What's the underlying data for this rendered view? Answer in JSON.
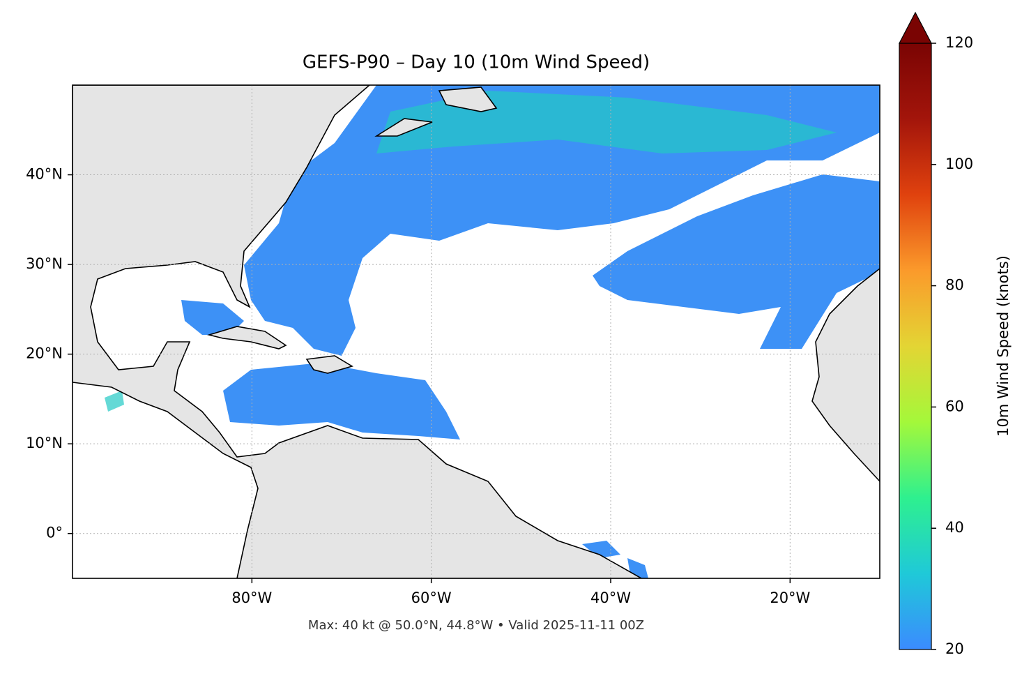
{
  "chart_data": {
    "type": "map",
    "title": "GEFS-P90 – Day 10 (10m Wind Speed)",
    "footer": "Max: 40 kt @ 50.0°N, 44.8°W • Valid 2025-11-11 00Z",
    "xlim": [
      -100,
      -10
    ],
    "ylim": [
      -5,
      50
    ],
    "xticks": [
      {
        "value": -80,
        "label": "80°W"
      },
      {
        "value": -60,
        "label": "60°W"
      },
      {
        "value": -40,
        "label": "40°W"
      },
      {
        "value": -20,
        "label": "20°W"
      }
    ],
    "yticks": [
      {
        "value": 0,
        "label": "0°"
      },
      {
        "value": 10,
        "label": "10°N"
      },
      {
        "value": 20,
        "label": "20°N"
      },
      {
        "value": 30,
        "label": "30°N"
      },
      {
        "value": 40,
        "label": "40°N"
      }
    ],
    "grid": true,
    "land_color": "#e5e5e5",
    "colorbar": {
      "label": "10m Wind Speed (knots)",
      "lim": [
        20,
        120
      ],
      "ticks": [
        20,
        40,
        60,
        80,
        100,
        120
      ],
      "extend": "max",
      "colors": [
        "#3b8bff",
        "#1fc9d8",
        "#2ef08f",
        "#a4f83a",
        "#e3d534",
        "#fb9a2b",
        "#e0420e",
        "#a3150b",
        "#7a0403"
      ]
    }
  }
}
